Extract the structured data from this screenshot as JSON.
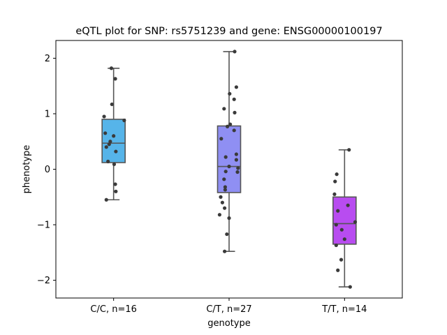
{
  "chart_data": {
    "type": "box",
    "title": "eQTL plot for SNP: rs5751239 and gene: ENSG00000100197",
    "xlabel": "genotype",
    "ylabel": "phenotype",
    "ylim": [
      -2.32,
      2.32
    ],
    "yticks": [
      -2,
      -1,
      0,
      1,
      2
    ],
    "ytick_labels": [
      "−2",
      "−1",
      "0",
      "1",
      "2"
    ],
    "categories": [
      "C/C, n=16",
      "C/T, n=27",
      "T/T, n=14"
    ],
    "series": [
      {
        "color": "#56b4e9",
        "whisker_low": -0.55,
        "q1": 0.12,
        "median": 0.47,
        "q3": 0.9,
        "whisker_high": 1.82,
        "points": [
          [
            -0.17,
            0.95
          ],
          [
            0.19,
            0.88
          ],
          [
            -0.04,
            1.82
          ],
          [
            0.03,
            1.63
          ],
          [
            -0.03,
            1.17
          ],
          [
            -0.15,
            0.65
          ],
          [
            -0.08,
            0.45
          ],
          [
            -0.06,
            0.5
          ],
          [
            0.0,
            0.6
          ],
          [
            -0.13,
            0.4
          ],
          [
            0.04,
            0.32
          ],
          [
            -0.1,
            0.14
          ],
          [
            0.01,
            0.09
          ],
          [
            0.03,
            -0.27
          ],
          [
            0.04,
            -0.4
          ],
          [
            -0.13,
            -0.55
          ]
        ]
      },
      {
        "color": "#8f8ff3",
        "whisker_low": -1.48,
        "q1": -0.42,
        "median": 0.05,
        "q3": 0.78,
        "whisker_high": 2.12,
        "points": [
          [
            0.1,
            2.12
          ],
          [
            0.13,
            1.48
          ],
          [
            0.01,
            1.36
          ],
          [
            -0.09,
            1.09
          ],
          [
            0.09,
            1.26
          ],
          [
            0.1,
            1.02
          ],
          [
            0.02,
            0.81
          ],
          [
            -0.03,
            0.77
          ],
          [
            0.09,
            0.7
          ],
          [
            -0.14,
            0.55
          ],
          [
            0.13,
            0.27
          ],
          [
            -0.06,
            0.22
          ],
          [
            0.13,
            0.17
          ],
          [
            0.0,
            0.05
          ],
          [
            0.16,
            0.02
          ],
          [
            -0.06,
            -0.04
          ],
          [
            -0.09,
            -0.18
          ],
          [
            -0.07,
            -0.32
          ],
          [
            -0.07,
            -0.37
          ],
          [
            -0.15,
            -0.5
          ],
          [
            -0.12,
            -0.6
          ],
          [
            -0.08,
            -0.7
          ],
          [
            -0.17,
            -0.82
          ],
          [
            0.0,
            -0.88
          ],
          [
            -0.04,
            -1.17
          ],
          [
            -0.08,
            -1.48
          ],
          [
            0.15,
            -0.05
          ]
        ]
      },
      {
        "color": "#b84cf0",
        "whisker_low": -2.12,
        "q1": -1.35,
        "median": -0.98,
        "q3": -0.5,
        "whisker_high": 0.35,
        "points": [
          [
            0.08,
            0.35
          ],
          [
            -0.14,
            -0.09
          ],
          [
            -0.17,
            -0.22
          ],
          [
            -0.18,
            -0.45
          ],
          [
            0.06,
            -0.65
          ],
          [
            -0.12,
            -0.75
          ],
          [
            0.19,
            -0.95
          ],
          [
            -0.15,
            -1.0
          ],
          [
            -0.05,
            -1.09
          ],
          [
            0.0,
            -1.26
          ],
          [
            -0.15,
            -1.37
          ],
          [
            -0.06,
            -1.63
          ],
          [
            -0.12,
            -1.82
          ],
          [
            0.1,
            -2.12
          ]
        ]
      }
    ],
    "style": {
      "box_edge": "#555555",
      "point": "#3a3a3a",
      "frame": "#000000"
    }
  }
}
